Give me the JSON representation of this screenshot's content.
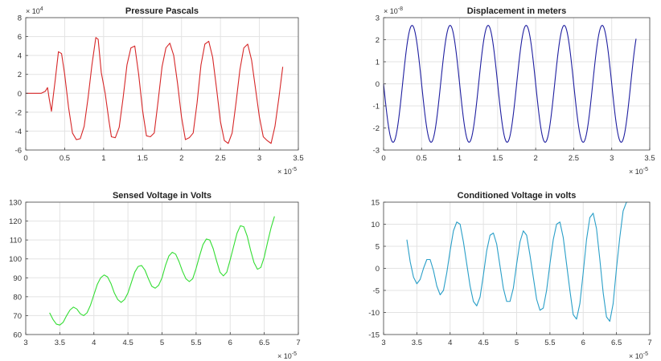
{
  "chart_data": [
    {
      "type": "line",
      "title": "Pressure Pascals",
      "xlabel": "",
      "ylabel": "",
      "x_exponent": "× 10^-5",
      "y_exponent": "× 10^4",
      "xlim": [
        0,
        3.5
      ],
      "ylim": [
        -6,
        8
      ],
      "xticks": [
        0,
        0.5,
        1,
        1.5,
        2,
        2.5,
        3,
        3.5
      ],
      "xtick_labels": [
        "0",
        "0.5",
        "1",
        "1.5",
        "2",
        "2.5",
        "3",
        "3.5"
      ],
      "yticks": [
        -6,
        -4,
        -2,
        0,
        2,
        4,
        6,
        8
      ],
      "ytick_labels": [
        "-6",
        "-4",
        "-2",
        "0",
        "2",
        "4",
        "6",
        "8"
      ],
      "grid": true,
      "color": "#d62728",
      "series": [
        {
          "x": [
            0,
            0.2,
            0.25,
            0.28,
            0.3,
            0.33,
            0.38,
            0.42,
            0.46,
            0.5,
            0.55,
            0.6,
            0.65,
            0.7,
            0.75,
            0.8,
            0.85,
            0.9,
            0.93,
            0.97,
            1.02,
            1.07,
            1.1,
            1.15,
            1.2,
            1.25,
            1.3,
            1.35,
            1.4,
            1.45,
            1.5,
            1.55,
            1.6,
            1.65,
            1.7,
            1.75,
            1.8,
            1.85,
            1.9,
            1.95,
            2.0,
            2.05,
            2.1,
            2.15,
            2.2,
            2.25,
            2.3,
            2.35,
            2.4,
            2.45,
            2.5,
            2.55,
            2.6,
            2.65,
            2.7,
            2.75,
            2.8,
            2.85,
            2.9,
            2.95,
            3.0,
            3.05,
            3.1,
            3.15,
            3.2,
            3.25,
            3.3
          ],
          "y": [
            0,
            0,
            0.2,
            0.6,
            -0.5,
            -1.9,
            1.5,
            4.4,
            4.2,
            2.0,
            -1.5,
            -4.2,
            -4.9,
            -4.8,
            -3.5,
            -0.5,
            3.0,
            5.9,
            5.7,
            2.2,
            0,
            -3.0,
            -4.6,
            -4.7,
            -3.6,
            -0.5,
            3.0,
            4.8,
            5.0,
            2.0,
            -1.8,
            -4.5,
            -4.6,
            -4.2,
            -0.8,
            2.8,
            4.8,
            5.3,
            4.0,
            1.0,
            -2.5,
            -4.9,
            -4.7,
            -4.2,
            -1.0,
            3.0,
            5.2,
            5.5,
            3.8,
            0.5,
            -3.0,
            -5.0,
            -5.3,
            -4.2,
            -1.0,
            2.5,
            4.8,
            5.2,
            3.5,
            0.5,
            -2.5,
            -4.6,
            -5.0,
            -5.3,
            -3.5,
            -0.5,
            2.8
          ]
        }
      ]
    },
    {
      "type": "line",
      "title": "Displacement in meters",
      "xlabel": "",
      "ylabel": "",
      "x_exponent": "× 10^-5",
      "y_exponent": "× 10^-8",
      "xlim": [
        0,
        3.5
      ],
      "ylim": [
        -3,
        3
      ],
      "xticks": [
        0,
        0.5,
        1,
        1.5,
        2,
        2.5,
        3,
        3.5
      ],
      "xtick_labels": [
        "0",
        "0.5",
        "1",
        "1.5",
        "2",
        "2.5",
        "3",
        "3.5"
      ],
      "yticks": [
        -3,
        -2,
        -1,
        0,
        1,
        2,
        3
      ],
      "ytick_labels": [
        "-3",
        "-2",
        "-1",
        "0",
        "1",
        "2",
        "3"
      ],
      "grid": true,
      "color": "#1f1fa0",
      "series": [
        {
          "function": "sine",
          "amplitude": 2.65,
          "period": 0.5,
          "phase_x": 0.14,
          "x_start": 0,
          "x_end": 3.32
        }
      ]
    },
    {
      "type": "line",
      "title": "Sensed Voltage in Volts",
      "xlabel": "",
      "ylabel": "",
      "x_exponent": "× 10^-5",
      "y_exponent": "",
      "xlim": [
        3,
        7
      ],
      "ylim": [
        60,
        130
      ],
      "xticks": [
        3,
        3.5,
        4,
        4.5,
        5,
        5.5,
        6,
        6.5,
        7
      ],
      "xtick_labels": [
        "3",
        "3.5",
        "4",
        "4.5",
        "5",
        "5.5",
        "6",
        "6.5",
        "7"
      ],
      "yticks": [
        60,
        70,
        80,
        90,
        100,
        110,
        120,
        130
      ],
      "ytick_labels": [
        "60",
        "70",
        "80",
        "90",
        "100",
        "110",
        "120",
        "130"
      ],
      "grid": true,
      "color": "#33dd33",
      "series": [
        {
          "x": [
            3.35,
            3.4,
            3.45,
            3.5,
            3.55,
            3.6,
            3.65,
            3.7,
            3.75,
            3.8,
            3.85,
            3.9,
            3.95,
            4.0,
            4.05,
            4.1,
            4.15,
            4.2,
            4.25,
            4.3,
            4.35,
            4.4,
            4.45,
            4.5,
            4.55,
            4.6,
            4.65,
            4.7,
            4.75,
            4.8,
            4.85,
            4.9,
            4.95,
            5.0,
            5.05,
            5.1,
            5.15,
            5.2,
            5.25,
            5.3,
            5.35,
            5.4,
            5.45,
            5.5,
            5.55,
            5.6,
            5.65,
            5.7,
            5.75,
            5.8,
            5.85,
            5.9,
            5.95,
            6.0,
            6.05,
            6.1,
            6.15,
            6.2,
            6.25,
            6.3,
            6.35,
            6.4,
            6.45,
            6.5,
            6.55,
            6.6,
            6.65
          ],
          "y": [
            71.5,
            68,
            65.5,
            65,
            66.5,
            70,
            73,
            74.5,
            73.5,
            71,
            70,
            71.5,
            75.5,
            81,
            86.5,
            90,
            91.5,
            90.5,
            87,
            82,
            78.5,
            77,
            78.5,
            82,
            87.5,
            93,
            96,
            96.5,
            94,
            89.5,
            85.5,
            84.5,
            86,
            90,
            96.5,
            101.5,
            103.5,
            102.5,
            98.5,
            93.5,
            89.5,
            88,
            89.5,
            95,
            101.5,
            107.5,
            110.5,
            110,
            105.5,
            99,
            93,
            91,
            93,
            99.5,
            106.5,
            113.5,
            117.5,
            117,
            112,
            104.5,
            98,
            94.5,
            95.5,
            101,
            109,
            116.5,
            122.5
          ]
        }
      ]
    },
    {
      "type": "line",
      "title": "Conditioned Voltage in volts",
      "xlabel": "",
      "ylabel": "",
      "x_exponent": "× 10^-5",
      "y_exponent": "",
      "xlim": [
        3,
        7
      ],
      "ylim": [
        -15,
        15
      ],
      "xticks": [
        3,
        3.5,
        4,
        4.5,
        5,
        5.5,
        6,
        6.5,
        7
      ],
      "xtick_labels": [
        "3",
        "3.5",
        "4",
        "4.5",
        "5",
        "5.5",
        "6",
        "6.5",
        "7"
      ],
      "yticks": [
        -15,
        -10,
        -5,
        0,
        5,
        10,
        15
      ],
      "ytick_labels": [
        "-15",
        "-10",
        "-5",
        "0",
        "5",
        "10",
        "15"
      ],
      "grid": true,
      "color": "#2a9fc8",
      "series": [
        {
          "x": [
            3.35,
            3.4,
            3.45,
            3.5,
            3.55,
            3.6,
            3.65,
            3.7,
            3.75,
            3.8,
            3.85,
            3.9,
            3.95,
            4.0,
            4.05,
            4.1,
            4.15,
            4.2,
            4.25,
            4.3,
            4.35,
            4.4,
            4.45,
            4.5,
            4.55,
            4.6,
            4.65,
            4.7,
            4.75,
            4.8,
            4.85,
            4.9,
            4.95,
            5.0,
            5.05,
            5.1,
            5.15,
            5.2,
            5.25,
            5.3,
            5.35,
            5.4,
            5.45,
            5.5,
            5.55,
            5.6,
            5.65,
            5.7,
            5.75,
            5.8,
            5.85,
            5.9,
            5.95,
            6.0,
            6.05,
            6.1,
            6.15,
            6.2,
            6.25,
            6.3,
            6.35,
            6.4,
            6.45,
            6.5,
            6.55,
            6.6,
            6.65,
            6.67
          ],
          "y": [
            6.5,
            1.5,
            -2,
            -3.5,
            -2.5,
            0,
            2,
            2,
            -0.5,
            -4,
            -6,
            -5,
            -1,
            4,
            8.5,
            10.5,
            10,
            6,
            1,
            -4,
            -7.5,
            -8.5,
            -6.5,
            -1.5,
            4,
            7.5,
            8,
            5.5,
            0.5,
            -4.5,
            -7.5,
            -7.5,
            -4.5,
            1,
            6,
            8.5,
            7.5,
            3,
            -2,
            -7,
            -9.5,
            -9,
            -5,
            1,
            6.5,
            10,
            10.5,
            7,
            1,
            -5,
            -10.5,
            -11.5,
            -8,
            -1,
            6.5,
            11.5,
            12.5,
            9,
            2,
            -5.5,
            -11,
            -12,
            -8,
            0,
            7,
            13,
            15,
            15
          ]
        }
      ]
    }
  ]
}
